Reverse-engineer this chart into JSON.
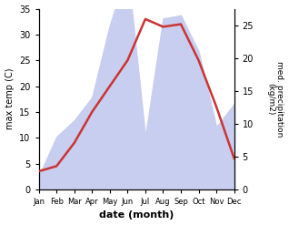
{
  "months": [
    "Jan",
    "Feb",
    "Mar",
    "Apr",
    "May",
    "Jun",
    "Jul",
    "Aug",
    "Sep",
    "Oct",
    "Nov",
    "Dec"
  ],
  "temp": [
    3.5,
    4.5,
    9.0,
    15.0,
    20.0,
    25.0,
    33.0,
    31.5,
    32.0,
    25.0,
    16.0,
    6.0
  ],
  "precip": [
    2.0,
    8.0,
    10.5,
    14.0,
    25.0,
    33.5,
    8.0,
    26.0,
    26.5,
    21.0,
    9.5,
    13.0
  ],
  "temp_ylim": [
    0,
    35
  ],
  "precip_ylim": [
    0,
    27.5
  ],
  "temp_color": "#cc3333",
  "fill_color": "#c8cef0",
  "xlabel": "date (month)",
  "ylabel_left": "max temp (C)",
  "ylabel_right": "med. precipitation\n(kg/m2)",
  "bg_color": "#ffffff",
  "temp_yticks": [
    0,
    5,
    10,
    15,
    20,
    25,
    30,
    35
  ],
  "precip_yticks": [
    0,
    5,
    10,
    15,
    20,
    25
  ]
}
